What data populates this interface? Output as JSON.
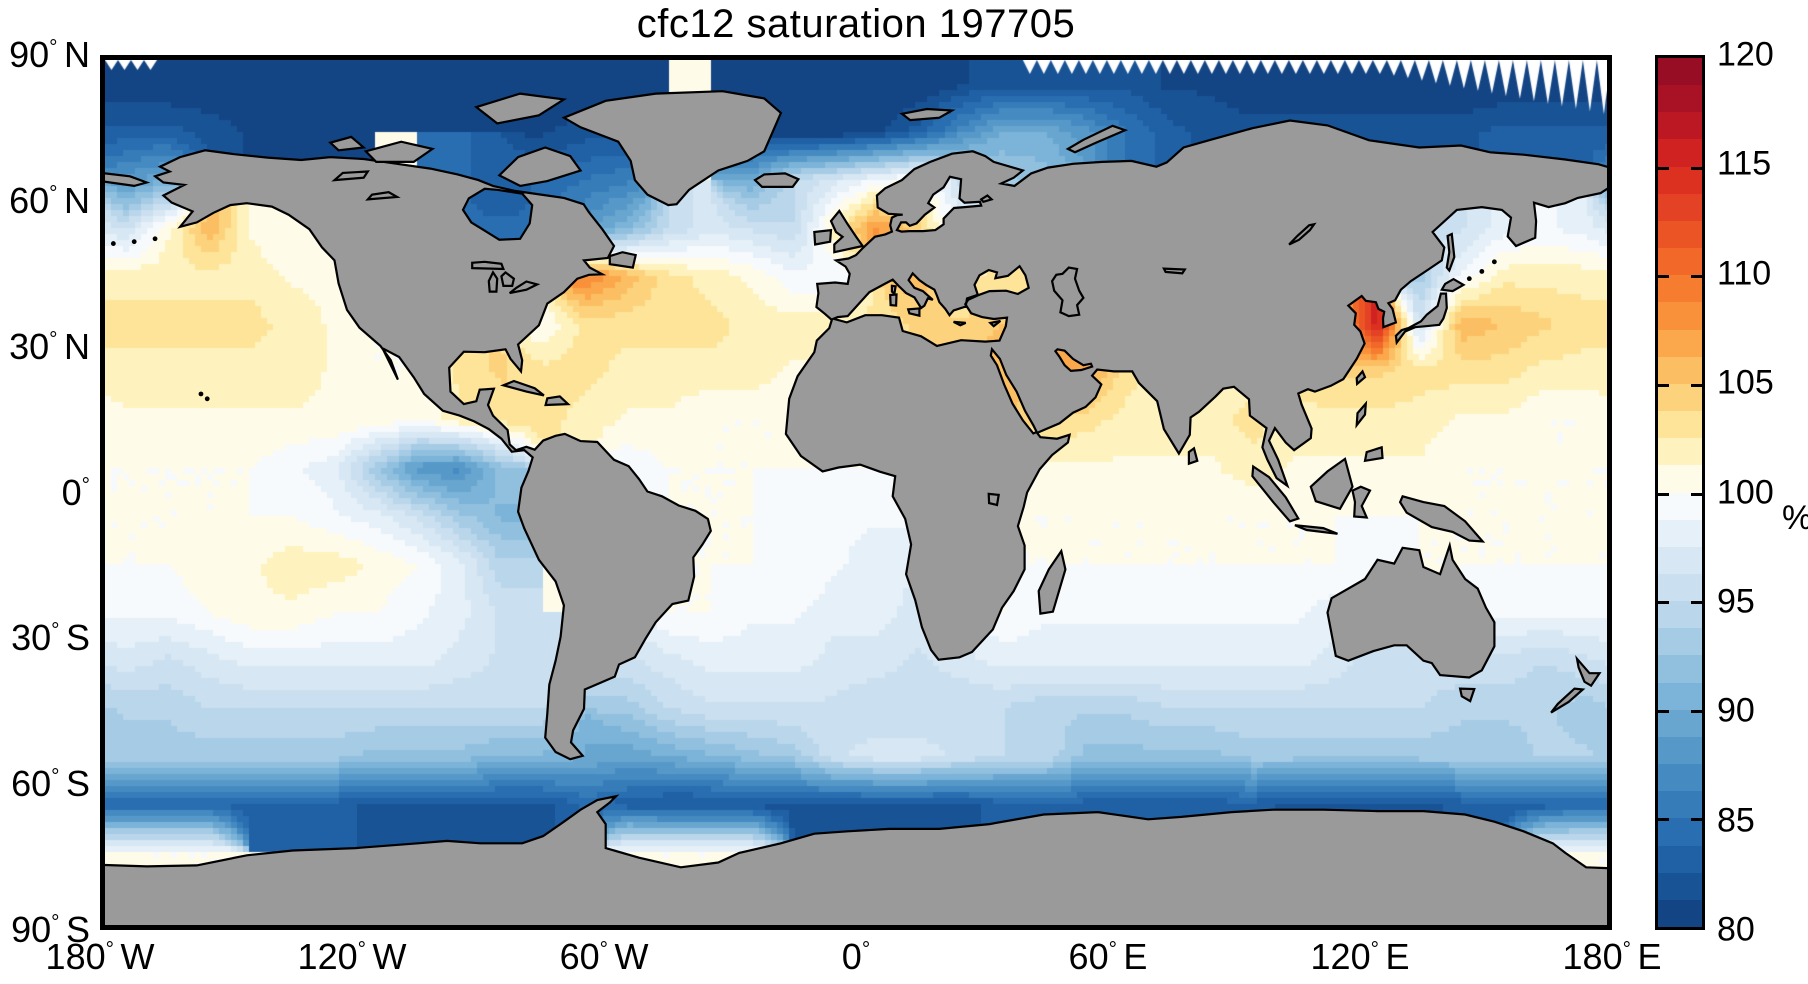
{
  "title": "cfc12 saturation 197705",
  "chart_data": {
    "type": "heatmap",
    "title": "cfc12 saturation 197705",
    "variable": "cfc12 saturation",
    "date_code": "197705",
    "units": "%",
    "land_color": "#9a9a9a",
    "coast_color": "#000000",
    "x_axis": {
      "tick_lons": [
        -180,
        -120,
        -60,
        0,
        60,
        120,
        180
      ],
      "tick_labels": [
        "180°W",
        "120°W",
        "60°W",
        "0°",
        "60°E",
        "120°E",
        "180°E"
      ]
    },
    "y_axis": {
      "tick_lats": [
        90,
        60,
        30,
        0,
        -30,
        -60,
        -90
      ],
      "tick_labels": [
        "90°N",
        "60°N",
        "30°N",
        "0°",
        "30°S",
        "60°S",
        "90°S"
      ]
    },
    "colorbar": {
      "min": 80,
      "max": 120,
      "n_bands": 32,
      "band_width": 1.25,
      "tick_values": [
        80,
        85,
        90,
        95,
        100,
        105,
        110,
        115,
        120
      ],
      "tick_labels": [
        "80",
        "85",
        "90",
        "95",
        "100",
        "105",
        "110",
        "115",
        "120"
      ],
      "minor_tick_values": [
        85,
        90,
        95,
        100,
        105,
        110,
        115
      ],
      "unit_label": "%"
    },
    "colormap_stops": [
      [
        80,
        "#103d7b"
      ],
      [
        82.5,
        "#1b5a9f"
      ],
      [
        85,
        "#2e74b5"
      ],
      [
        87.5,
        "#4d92c5"
      ],
      [
        90,
        "#71add4"
      ],
      [
        92.5,
        "#9cc6e2"
      ],
      [
        95,
        "#c3dbee"
      ],
      [
        97.5,
        "#ddebf5"
      ],
      [
        100,
        "#ffffff"
      ],
      [
        102.5,
        "#fdeda8"
      ],
      [
        105,
        "#fdc96d"
      ],
      [
        107.5,
        "#fa9c41"
      ],
      [
        110,
        "#f4712a"
      ],
      [
        112.5,
        "#e84b25"
      ],
      [
        115,
        "#d8271f"
      ],
      [
        117.5,
        "#b21325"
      ],
      [
        120,
        "#8e0c24"
      ]
    ],
    "grid": {
      "description": "saturation percent on 10-degree cells; null = land/no data",
      "lon_start": -175,
      "lon_step": 10,
      "lat_start": 85,
      "lat_step": -10,
      "values": [
        [
          80,
          80,
          80,
          80,
          80,
          80,
          80,
          80,
          80,
          80,
          80,
          80,
          80,
          null,
          null,
          80,
          80,
          80,
          80,
          80,
          81,
          82,
          82,
          82,
          82,
          81,
          81,
          80,
          80,
          80,
          80,
          80,
          80,
          80,
          80,
          80
        ],
        [
          83,
          83,
          82,
          81,
          80,
          81,
          null,
          null,
          null,
          null,
          81,
          82,
          82,
          null,
          null,
          81,
          80,
          80,
          81,
          83,
          87,
          90,
          90,
          88,
          85,
          83,
          82,
          82,
          82,
          82,
          82,
          82,
          82,
          83,
          83,
          83
        ],
        [
          88,
          90,
          null,
          null,
          null,
          null,
          null,
          null,
          84,
          83,
          84,
          85,
          86,
          null,
          null,
          90,
          95,
          97,
          99,
          101,
          96,
          93,
          92,
          null,
          null,
          null,
          null,
          null,
          null,
          null,
          null,
          null,
          null,
          null,
          null,
          null
        ],
        [
          96,
          101,
          106,
          101,
          100,
          101,
          null,
          null,
          null,
          84,
          null,
          88,
          91,
          95,
          97,
          96,
          95,
          102,
          108,
          104,
          98,
          null,
          null,
          null,
          null,
          null,
          null,
          null,
          null,
          null,
          null,
          null,
          96,
          98,
          99,
          98
        ],
        [
          102,
          102,
          102,
          102,
          101,
          101,
          null,
          null,
          null,
          null,
          null,
          109,
          106,
          103,
          102,
          101,
          99,
          99,
          null,
          106,
          102,
          103,
          null,
          null,
          null,
          null,
          null,
          null,
          null,
          null,
          null,
          93,
          99,
          102,
          102,
          102
        ],
        [
          103,
          103,
          103,
          103,
          102,
          101,
          100,
          null,
          null,
          null,
          100,
          103,
          103,
          103,
          103,
          102,
          102,
          102,
          103,
          104,
          104,
          105,
          null,
          null,
          null,
          null,
          null,
          null,
          null,
          105,
          116,
          96,
          106,
          105,
          104,
          103
        ],
        [
          102,
          102,
          102,
          102,
          102,
          101,
          100,
          100,
          103,
          104,
          103,
          103,
          102,
          102,
          102,
          102,
          101,
          null,
          null,
          null,
          null,
          106,
          null,
          107,
          103,
          102,
          101,
          102,
          103,
          104,
          104,
          103,
          103,
          103,
          102,
          102
        ],
        [
          101,
          101,
          101,
          101,
          101,
          101,
          101,
          100,
          102,
          103,
          103,
          102,
          101,
          101,
          100,
          100,
          100,
          100,
          100,
          null,
          null,
          null,
          104,
          103,
          102,
          102,
          102,
          103,
          102,
          102,
          102,
          102,
          101,
          101,
          100,
          100
        ],
        [
          100,
          100,
          100,
          100,
          99,
          98,
          93,
          88,
          87,
          92,
          null,
          null,
          99,
          100,
          100,
          100,
          100,
          100,
          100,
          null,
          null,
          null,
          101,
          101,
          101,
          101,
          101,
          102,
          101,
          101,
          101,
          101,
          100,
          100,
          100,
          100
        ],
        [
          100,
          100,
          100,
          100,
          100,
          99,
          98,
          96,
          93,
          91,
          null,
          null,
          null,
          null,
          100,
          100,
          99,
          99,
          99,
          null,
          null,
          null,
          100,
          100,
          100,
          100,
          100,
          100,
          100,
          100,
          100,
          null,
          null,
          100,
          100,
          100
        ],
        [
          100,
          100,
          101,
          101,
          102,
          102,
          101,
          100,
          98,
          94,
          null,
          null,
          null,
          null,
          100,
          100,
          100,
          99,
          98,
          null,
          null,
          null,
          100,
          100,
          100,
          100,
          100,
          100,
          100,
          100,
          99,
          null,
          100,
          100,
          100,
          100
        ],
        [
          99,
          99,
          100,
          101,
          101,
          100,
          100,
          99,
          98,
          96,
          null,
          null,
          null,
          100,
          100,
          99,
          99,
          98,
          98,
          97,
          null,
          100,
          99,
          99,
          99,
          99,
          99,
          99,
          99,
          98,
          null,
          null,
          null,
          99,
          99,
          99
        ],
        [
          97,
          96,
          97,
          98,
          98,
          98,
          98,
          98,
          97,
          96,
          96,
          null,
          96,
          97,
          98,
          98,
          98,
          97,
          97,
          96,
          97,
          98,
          98,
          98,
          98,
          98,
          98,
          98,
          98,
          97,
          95,
          96,
          96,
          96,
          95,
          96
        ],
        [
          94,
          94,
          95,
          95,
          95,
          95,
          95,
          95,
          95,
          95,
          95,
          null,
          93,
          95,
          96,
          96,
          96,
          96,
          95,
          95,
          95,
          95,
          94,
          94,
          94,
          95,
          95,
          95,
          95,
          95,
          95,
          95,
          94,
          94,
          94,
          93
        ],
        [
          93,
          93,
          93,
          93,
          93,
          93,
          92,
          92,
          92,
          91,
          91,
          90,
          89,
          90,
          91,
          92,
          93,
          96,
          97,
          97,
          96,
          95,
          95,
          92,
          92,
          92,
          92,
          93,
          93,
          93,
          93,
          93,
          93,
          93,
          94,
          94
        ],
        [
          84,
          84,
          84,
          83,
          83,
          83,
          82,
          82,
          82,
          82,
          82,
          84,
          83,
          82,
          82,
          82,
          82,
          82,
          82,
          82,
          82,
          83,
          83,
          83,
          83,
          83,
          83,
          83,
          82,
          82,
          82,
          82,
          83,
          83,
          83,
          84
        ],
        [
          100,
          100,
          100,
          null,
          null,
          null,
          null,
          null,
          null,
          null,
          null,
          null,
          100,
          100,
          100,
          100,
          null,
          null,
          null,
          null,
          null,
          null,
          null,
          null,
          null,
          null,
          null,
          null,
          null,
          null,
          null,
          null,
          null,
          null,
          100,
          100
        ],
        [
          null,
          null,
          null,
          null,
          null,
          null,
          null,
          null,
          null,
          null,
          null,
          null,
          null,
          null,
          null,
          null,
          null,
          null,
          null,
          null,
          null,
          null,
          null,
          null,
          null,
          null,
          null,
          null,
          null,
          null,
          null,
          null,
          null,
          null,
          null,
          null
        ]
      ]
    }
  }
}
